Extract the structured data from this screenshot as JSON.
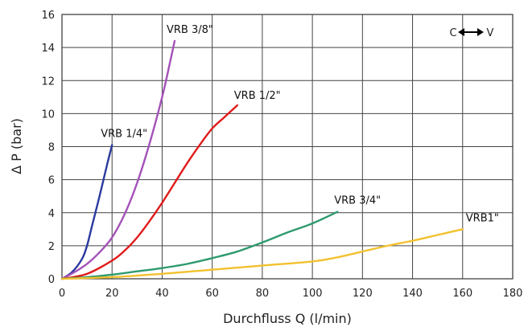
{
  "chart_data": {
    "type": "line",
    "xlabel": "Durchfluss Q (l/min)",
    "ylabel": "Δ P (bar)",
    "xlim": [
      0,
      180
    ],
    "ylim": [
      0,
      16
    ],
    "xticks": [
      0,
      20,
      40,
      60,
      80,
      100,
      120,
      140,
      160,
      180
    ],
    "yticks": [
      0,
      2,
      4,
      6,
      8,
      10,
      12,
      14,
      16
    ],
    "grid": true,
    "legend": "labels placed next to curve ends",
    "direction_label": {
      "left": "C",
      "right": "V"
    },
    "series": [
      {
        "name": "VRB 1/4\"",
        "color": "#2b3a9e",
        "x": [
          0,
          4,
          8,
          10,
          12,
          15,
          18,
          20
        ],
        "y": [
          0,
          0.4,
          1.2,
          2.0,
          3.2,
          5.0,
          6.9,
          8.1
        ]
      },
      {
        "name": "VRB 3/8\"",
        "color": "#a452b8",
        "x": [
          0,
          5,
          10,
          15,
          20,
          25,
          30,
          35,
          40,
          43,
          45
        ],
        "y": [
          0,
          0.4,
          0.9,
          1.6,
          2.5,
          3.9,
          5.8,
          8.2,
          11.0,
          13.0,
          14.4
        ]
      },
      {
        "name": "VRB 1/2\"",
        "color": "#e01b1b",
        "x": [
          0,
          10,
          20,
          25,
          30,
          35,
          40,
          45,
          50,
          55,
          60,
          65,
          70
        ],
        "y": [
          0,
          0.3,
          1.1,
          1.7,
          2.5,
          3.5,
          4.6,
          5.8,
          7.0,
          8.1,
          9.1,
          9.8,
          10.5
        ]
      },
      {
        "name": "VRB 3/4\"",
        "color": "#2e9a6e",
        "x": [
          0,
          10,
          20,
          30,
          40,
          50,
          60,
          70,
          80,
          90,
          100,
          110
        ],
        "y": [
          0,
          0.1,
          0.25,
          0.45,
          0.65,
          0.9,
          1.25,
          1.65,
          2.2,
          2.8,
          3.35,
          4.05
        ]
      },
      {
        "name": "VRB1\"",
        "color": "#f2c12e",
        "x": [
          0,
          20,
          40,
          60,
          80,
          100,
          110,
          120,
          130,
          140,
          150,
          160
        ],
        "y": [
          0,
          0.1,
          0.3,
          0.55,
          0.8,
          1.05,
          1.3,
          1.65,
          2.0,
          2.3,
          2.65,
          3.0
        ]
      }
    ]
  }
}
